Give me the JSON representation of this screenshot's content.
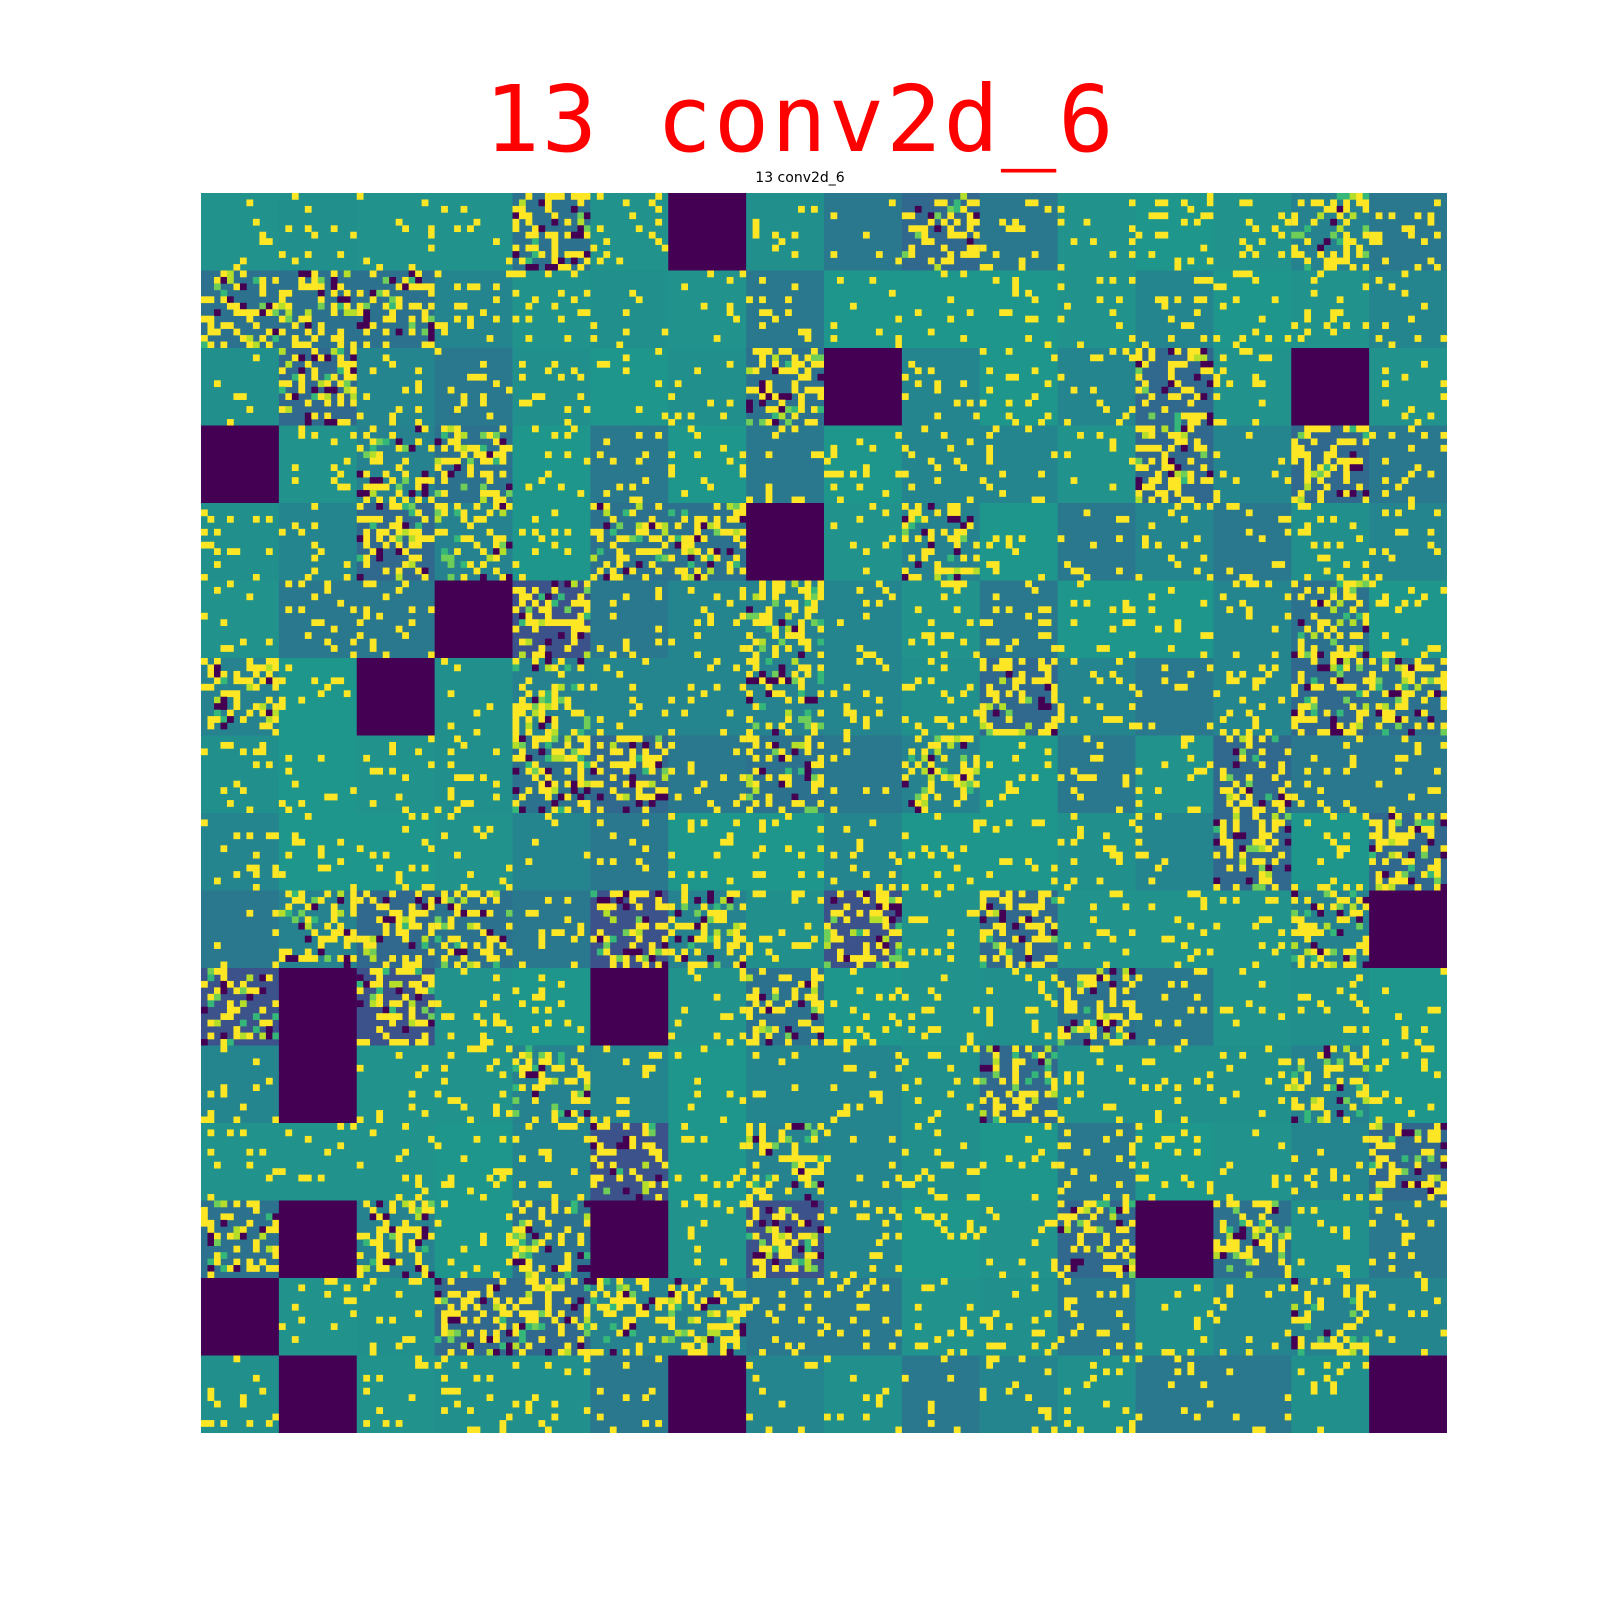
{
  "title_overlay": "13 conv2d_6",
  "subtitle": "13 conv2d_6",
  "grid": {
    "rows": 16,
    "cols": 16,
    "colormap": "viridis",
    "background_color": "#21908d",
    "dead_color": "#440154",
    "dead_tiles": [
      [
        0,
        6
      ],
      [
        2,
        8
      ],
      [
        2,
        14
      ],
      [
        3,
        0
      ],
      [
        4,
        7
      ],
      [
        5,
        3
      ],
      [
        6,
        2
      ],
      [
        9,
        15
      ],
      [
        10,
        1
      ],
      [
        10,
        5
      ],
      [
        11,
        1
      ],
      [
        13,
        1
      ],
      [
        13,
        5
      ],
      [
        13,
        12
      ],
      [
        14,
        0
      ],
      [
        15,
        1
      ],
      [
        15,
        6
      ],
      [
        15,
        15
      ]
    ]
  }
}
